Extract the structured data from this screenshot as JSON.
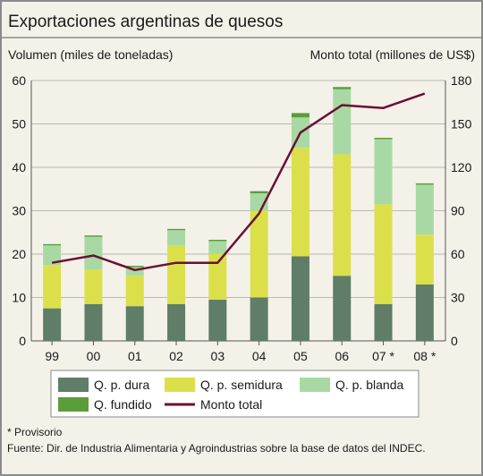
{
  "chart_data": {
    "type": "bar",
    "title": "Exportaciones argentinas de quesos",
    "ylabel_left": "Volumen (miles de toneladas)",
    "ylabel_right": "Monto total (millones de US$)",
    "ylim_left": [
      0,
      60
    ],
    "yticks_left": [
      0,
      10,
      20,
      30,
      40,
      50,
      60
    ],
    "ylim_right": [
      0,
      180
    ],
    "yticks_right": [
      0,
      30,
      60,
      90,
      120,
      150,
      180
    ],
    "categories": [
      "99",
      "00",
      "01",
      "02",
      "03",
      "04",
      "05",
      "06",
      "07 *",
      "08 *"
    ],
    "stacked": true,
    "series": [
      {
        "name": "Q. p. dura",
        "color": "#5f7d67",
        "values": [
          7.5,
          8.5,
          8.0,
          8.5,
          9.5,
          10.0,
          19.5,
          15.0,
          8.5,
          13.0
        ]
      },
      {
        "name": "Q. p. semidura",
        "color": "#dbe04a",
        "values": [
          10.0,
          8.0,
          7.0,
          13.5,
          10.5,
          20.0,
          25.0,
          28.0,
          23.0,
          11.5
        ]
      },
      {
        "name": "Q. p. blanda",
        "color": "#a8d9a4",
        "values": [
          4.5,
          7.5,
          2.0,
          3.5,
          3.0,
          4.0,
          7.0,
          15.0,
          15.0,
          11.5
        ]
      },
      {
        "name": "Q. fundido",
        "color": "#5b9c3a",
        "values": [
          0.3,
          0.3,
          0.3,
          0.3,
          0.3,
          0.5,
          1.0,
          0.5,
          0.3,
          0.3
        ]
      }
    ],
    "line": {
      "name": "Monto total",
      "color": "#6a1035",
      "axis": "right",
      "values": [
        54,
        59,
        49,
        54,
        54,
        88,
        144,
        163,
        161,
        171
      ]
    },
    "grid": true,
    "legend_position": "bottom",
    "footnotes": [
      "* Provisorio",
      "Fuente: Dir. de Industria Alimentaria y Agroindustrias sobre la base de datos del INDEC."
    ]
  }
}
